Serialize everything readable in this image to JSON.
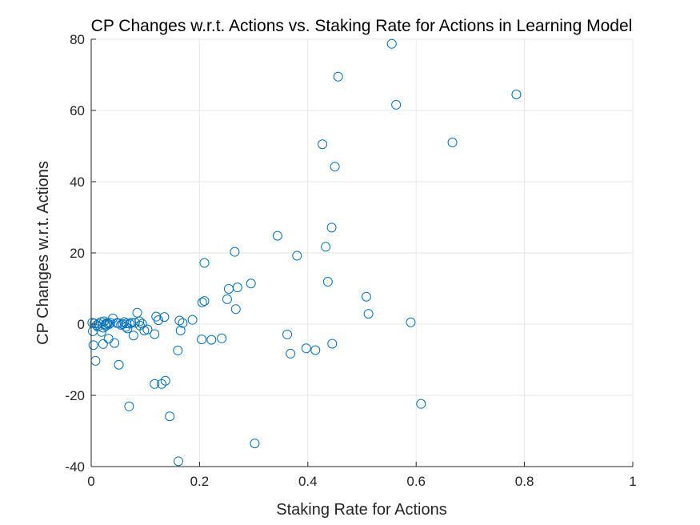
{
  "chart_data": {
    "type": "scatter",
    "title": "CP Changes w.r.t. Actions vs. Staking Rate for Actions in Learning Model",
    "xlabel": "Staking Rate for Actions",
    "ylabel": "CP Changes w.r.t. Actions",
    "xlim": [
      0,
      1
    ],
    "ylim": [
      -40,
      80
    ],
    "xticks": [
      0,
      0.2,
      0.4,
      0.6,
      0.8,
      1
    ],
    "xtick_labels": [
      "0",
      "0.2",
      "0.4",
      "0.6",
      "0.8",
      "1"
    ],
    "yticks": [
      -40,
      -20,
      0,
      20,
      40,
      60,
      80
    ],
    "ytick_labels": [
      "-40",
      "-20",
      "0",
      "20",
      "40",
      "60",
      "80"
    ],
    "grid": true,
    "marker_color": "#0072BD",
    "marker": "open-circle",
    "series": [
      {
        "points": [
          [
            0.555,
            78.7
          ],
          [
            0.456,
            69.5
          ],
          [
            0.563,
            61.6
          ],
          [
            0.785,
            64.5
          ],
          [
            0.667,
            51.0
          ],
          [
            0.427,
            50.5
          ],
          [
            0.45,
            44.2
          ],
          [
            0.444,
            27.1
          ],
          [
            0.344,
            24.8
          ],
          [
            0.433,
            21.7
          ],
          [
            0.38,
            19.2
          ],
          [
            0.265,
            20.3
          ],
          [
            0.209,
            17.2
          ],
          [
            0.437,
            11.9
          ],
          [
            0.295,
            11.4
          ],
          [
            0.254,
            9.9
          ],
          [
            0.27,
            10.3
          ],
          [
            0.508,
            7.7
          ],
          [
            0.251,
            7.0
          ],
          [
            0.209,
            6.5
          ],
          [
            0.205,
            6.1
          ],
          [
            0.267,
            4.2
          ],
          [
            0.512,
            2.9
          ],
          [
            0.59,
            0.5
          ],
          [
            0.187,
            1.2
          ],
          [
            0.163,
            1.0
          ],
          [
            0.169,
            0.3
          ],
          [
            0.12,
            2.1
          ],
          [
            0.135,
            2.0
          ],
          [
            0.124,
            1.1
          ],
          [
            0.085,
            3.2
          ],
          [
            0.089,
            0.8
          ],
          [
            0.09,
            -0.4
          ],
          [
            0.098,
            -1.8
          ],
          [
            0.104,
            -1.5
          ],
          [
            0.117,
            -2.8
          ],
          [
            0.078,
            -3.2
          ],
          [
            0.165,
            -1.8
          ],
          [
            0.16,
            -7.4
          ],
          [
            0.204,
            -4.3
          ],
          [
            0.222,
            -4.4
          ],
          [
            0.241,
            -4.0
          ],
          [
            0.362,
            -2.9
          ],
          [
            0.368,
            -8.3
          ],
          [
            0.397,
            -6.8
          ],
          [
            0.414,
            -7.3
          ],
          [
            0.445,
            -5.5
          ],
          [
            0.609,
            -22.4
          ],
          [
            0.302,
            -33.5
          ],
          [
            0.161,
            -38.5
          ],
          [
            0.145,
            -25.9
          ],
          [
            0.07,
            -23.1
          ],
          [
            0.117,
            -16.8
          ],
          [
            0.13,
            -16.8
          ],
          [
            0.137,
            -15.9
          ],
          [
            0.051,
            -11.4
          ],
          [
            0.008,
            -10.3
          ],
          [
            0.004,
            -5.9
          ],
          [
            0.022,
            -5.6
          ],
          [
            0.032,
            -4.1
          ],
          [
            0.043,
            -5.3
          ],
          [
            0.003,
            -2.0
          ],
          [
            0.019,
            -2.2
          ],
          [
            0.022,
            -1.0
          ],
          [
            0.027,
            -0.5
          ],
          [
            0.03,
            0.2
          ],
          [
            0.033,
            0.0
          ],
          [
            0.04,
            1.6
          ],
          [
            0.05,
            0.3
          ],
          [
            0.055,
            -0.2
          ],
          [
            0.061,
            0.6
          ],
          [
            0.064,
            -0.8
          ],
          [
            0.067,
            -1.2
          ],
          [
            0.071,
            0.1
          ],
          [
            0.074,
            0.4
          ],
          [
            0.002,
            0.4
          ],
          [
            0.006,
            0.2
          ],
          [
            0.01,
            -0.3
          ],
          [
            0.014,
            0.1
          ],
          [
            0.018,
            0.6
          ],
          [
            0.026,
            -0.1
          ],
          [
            0.029,
            0.3
          ],
          [
            0.035,
            0.4
          ],
          [
            0.012,
            -0.7
          ],
          [
            0.058,
            0.0
          ],
          [
            0.065,
            0.2
          ],
          [
            0.081,
            0.4
          ],
          [
            0.094,
            0.1
          ],
          [
            0.047,
            0.3
          ],
          [
            0.024,
            0.8
          ]
        ]
      }
    ]
  }
}
